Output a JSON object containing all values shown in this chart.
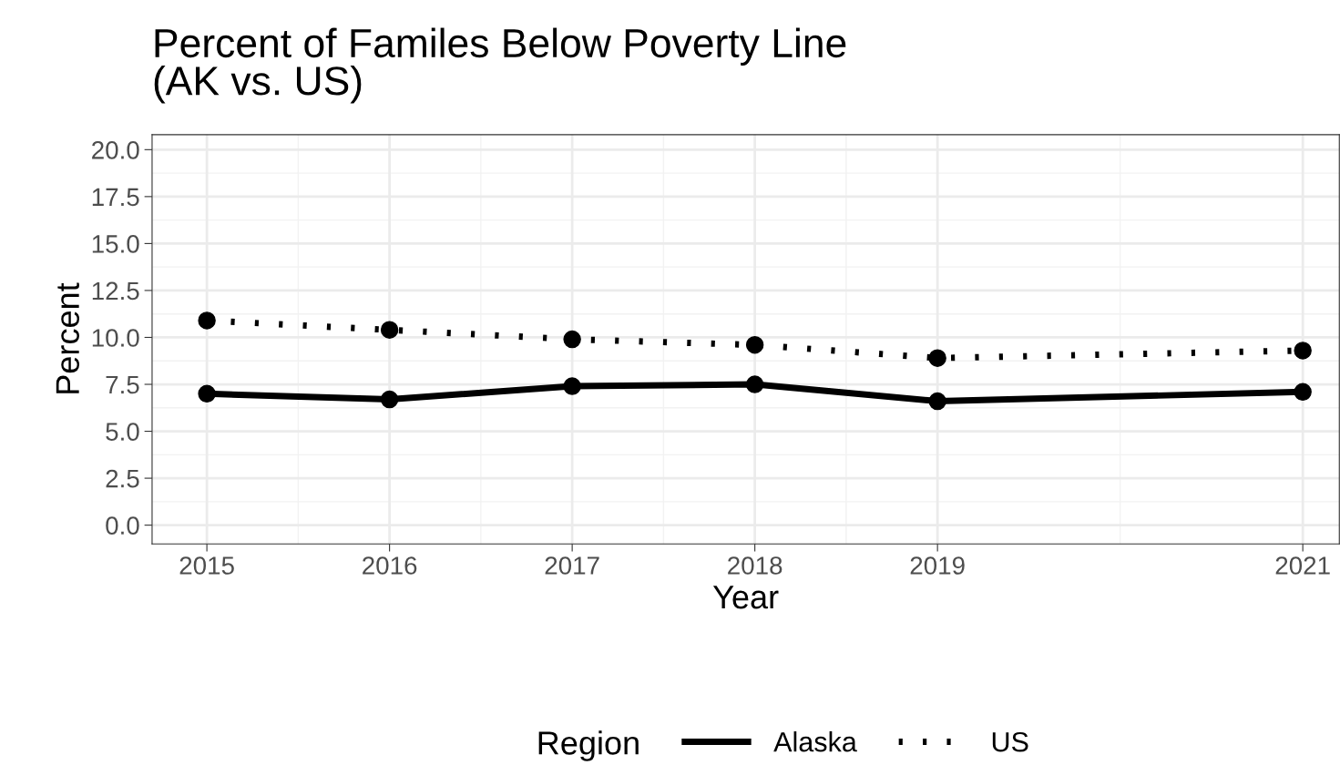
{
  "chart_data": {
    "type": "line",
    "title": "Percent of Familes Below Poverty Line\n(AK vs. US)",
    "xlabel": "Year",
    "ylabel": "Percent",
    "legend_title": "Region",
    "x": [
      2015,
      2016,
      2017,
      2018,
      2019,
      2021
    ],
    "series": [
      {
        "name": "Alaska",
        "color": "#000000",
        "line_style": "solid",
        "values": [
          7.0,
          6.7,
          7.4,
          7.5,
          6.6,
          7.1
        ]
      },
      {
        "name": "US",
        "color": "#000000",
        "line_style": "dotted",
        "values": [
          10.9,
          10.4,
          9.9,
          9.6,
          8.9,
          9.3
        ]
      }
    ],
    "xlim": [
      2014.7,
      2021.2
    ],
    "xticks": [
      2015,
      2016,
      2017,
      2018,
      2019,
      2021
    ],
    "ylim": [
      -1,
      20.8
    ],
    "yticks": [
      {
        "value": 0,
        "label": "0.0"
      },
      {
        "value": 2.5,
        "label": "2.5"
      },
      {
        "value": 5,
        "label": "5.0"
      },
      {
        "value": 7.5,
        "label": "7.5"
      },
      {
        "value": 10,
        "label": "10.0"
      },
      {
        "value": 12.5,
        "label": "12.5"
      },
      {
        "value": 15,
        "label": "15.0"
      },
      {
        "value": 17.5,
        "label": "17.5"
      },
      {
        "value": 20,
        "label": "20.0"
      }
    ],
    "grid": true,
    "legend": "bottom",
    "marker": "circle"
  }
}
